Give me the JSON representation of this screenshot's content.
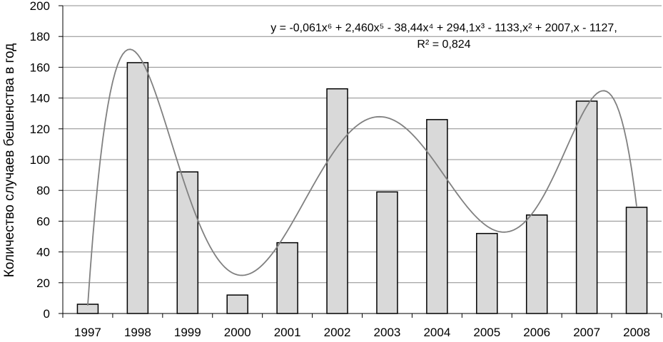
{
  "chart_data": {
    "type": "bar",
    "categories": [
      "1997",
      "1998",
      "1999",
      "2000",
      "2001",
      "2002",
      "2003",
      "2004",
      "2005",
      "2006",
      "2007",
      "2008"
    ],
    "series": [
      {
        "values": [
          6,
          163,
          92,
          12,
          46,
          146,
          79,
          126,
          52,
          64,
          138,
          69
        ]
      }
    ],
    "trendline": {
      "type": "polynomial",
      "order": 6,
      "equation": "y = -0,061x⁶ + 2,460x⁵ - 38,44x⁴ + 294,1x³ - 1133,x² + 2007,x - 1127,",
      "r_squared": "R² = 0,824",
      "color": "#808080"
    },
    "title": "",
    "xlabel": "",
    "ylabel": "Количество случаев бешенства в год",
    "ylim": [
      0,
      200
    ],
    "yticks": [
      "0",
      "20",
      "40",
      "60",
      "80",
      "100",
      "120",
      "140",
      "160",
      "180",
      "200"
    ],
    "grid": true,
    "legend": "none",
    "bar_color": "#d9d9d9",
    "bar_edge_color": "#000000"
  }
}
